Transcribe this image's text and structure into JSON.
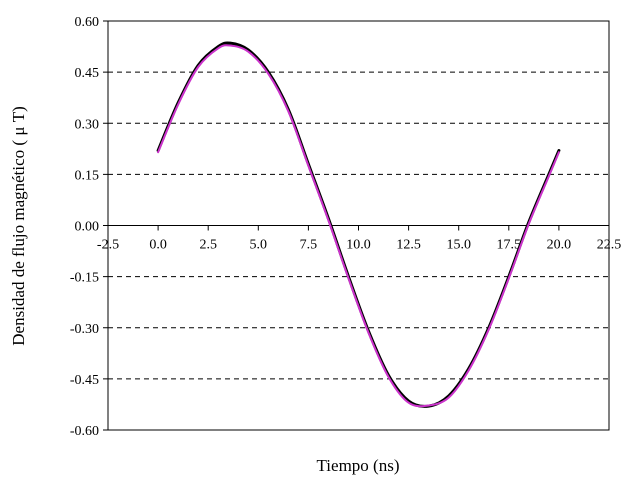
{
  "chart_data": {
    "type": "line",
    "title": "",
    "xlabel": "Tiempo (ns)",
    "ylabel": "Densidad de flujo magnético ( μ T)",
    "xlim": [
      -2.5,
      22.5
    ],
    "ylim": [
      -0.6,
      0.6
    ],
    "x_ticks": [
      "-2.5",
      "0.0",
      "2.5",
      "5.0",
      "7.5",
      "10.0",
      "12.5",
      "15.0",
      "17.5",
      "20.0",
      "22.5"
    ],
    "y_ticks": [
      "0.60",
      "0.45",
      "0.30",
      "0.15",
      "0.00",
      "-0.15",
      "-0.30",
      "-0.45",
      "-0.60"
    ],
    "grid": "horizontal dashed",
    "legend": "none",
    "series": [
      {
        "color": "#000000",
        "x": [
          0.0,
          1.0,
          2.0,
          3.0,
          3.6,
          4.5,
          5.5,
          6.5,
          7.5,
          8.5,
          9.5,
          10.5,
          11.5,
          12.5,
          13.5,
          14.5,
          15.5,
          16.5,
          17.5,
          18.5,
          19.5,
          20.0
        ],
        "y": [
          0.22,
          0.36,
          0.47,
          0.525,
          0.535,
          0.515,
          0.45,
          0.34,
          0.18,
          0.02,
          -0.15,
          -0.31,
          -0.44,
          -0.515,
          -0.53,
          -0.5,
          -0.42,
          -0.3,
          -0.15,
          0.01,
          0.15,
          0.22
        ]
      },
      {
        "color": "#cc33cc",
        "x": [
          0.0,
          1.0,
          2.0,
          3.0,
          3.6,
          4.5,
          5.5,
          6.5,
          7.5,
          8.5,
          9.5,
          10.5,
          11.5,
          12.5,
          13.5,
          14.5,
          15.5,
          16.5,
          17.5,
          18.5,
          19.5,
          20.0
        ],
        "y": [
          0.215,
          0.355,
          0.465,
          0.52,
          0.528,
          0.51,
          0.445,
          0.335,
          0.175,
          0.015,
          -0.155,
          -0.315,
          -0.445,
          -0.52,
          -0.528,
          -0.505,
          -0.425,
          -0.305,
          -0.155,
          0.005,
          0.145,
          0.215
        ]
      }
    ]
  }
}
